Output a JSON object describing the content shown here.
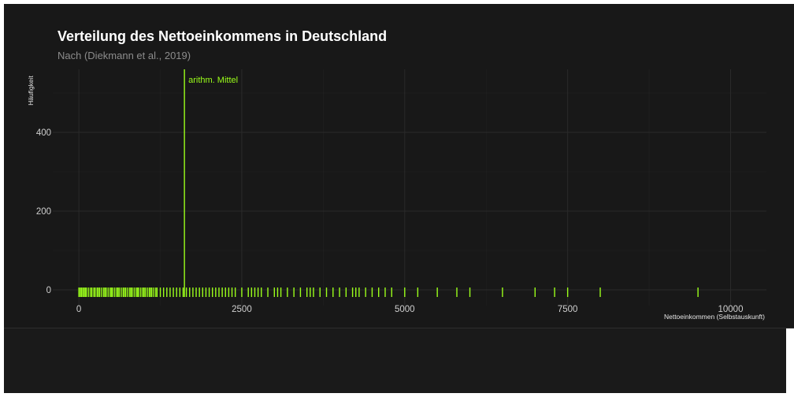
{
  "chart_data": {
    "type": "rug",
    "title": "Verteilung des Nettoeinkommens in Deutschland",
    "subtitle": "Nach (Diekmann et al., 2019)",
    "xlabel": "Nettoeinkommen (Selbstauskunft)",
    "ylabel": "Häufigkeit",
    "xlim": [
      -400,
      10550
    ],
    "ylim": [
      -40,
      560
    ],
    "x_ticks": [
      0,
      2500,
      5000,
      7500,
      10000
    ],
    "y_ticks": [
      0,
      200,
      400
    ],
    "grid": true,
    "mean": {
      "label": "arithm. Mittel",
      "value": 1620
    },
    "rug_values": [
      0,
      20,
      40,
      60,
      80,
      100,
      120,
      150,
      180,
      200,
      230,
      250,
      280,
      300,
      320,
      350,
      380,
      400,
      420,
      450,
      480,
      500,
      520,
      550,
      580,
      600,
      620,
      650,
      680,
      700,
      720,
      750,
      780,
      800,
      820,
      850,
      880,
      900,
      920,
      950,
      980,
      1000,
      1020,
      1050,
      1080,
      1100,
      1120,
      1150,
      1180,
      1200,
      1250,
      1300,
      1350,
      1400,
      1450,
      1500,
      1550,
      1600,
      1650,
      1700,
      1750,
      1800,
      1850,
      1900,
      1950,
      2000,
      2050,
      2100,
      2150,
      2200,
      2250,
      2300,
      2350,
      2400,
      2500,
      2600,
      2650,
      2700,
      2750,
      2800,
      2900,
      3000,
      3050,
      3100,
      3200,
      3300,
      3400,
      3500,
      3550,
      3600,
      3700,
      3800,
      3900,
      4000,
      4100,
      4200,
      4250,
      4300,
      4400,
      4500,
      4600,
      4700,
      4800,
      5000,
      5200,
      5500,
      5800,
      6000,
      6500,
      7000,
      7300,
      7500,
      8000,
      9500
    ],
    "colors": {
      "accent": "#9bff1a",
      "background": "#181818",
      "grid": "#2a2a2a",
      "tick_label": "#cfcfcf",
      "title": "#ffffff",
      "subtitle": "#8c8c8c"
    }
  }
}
